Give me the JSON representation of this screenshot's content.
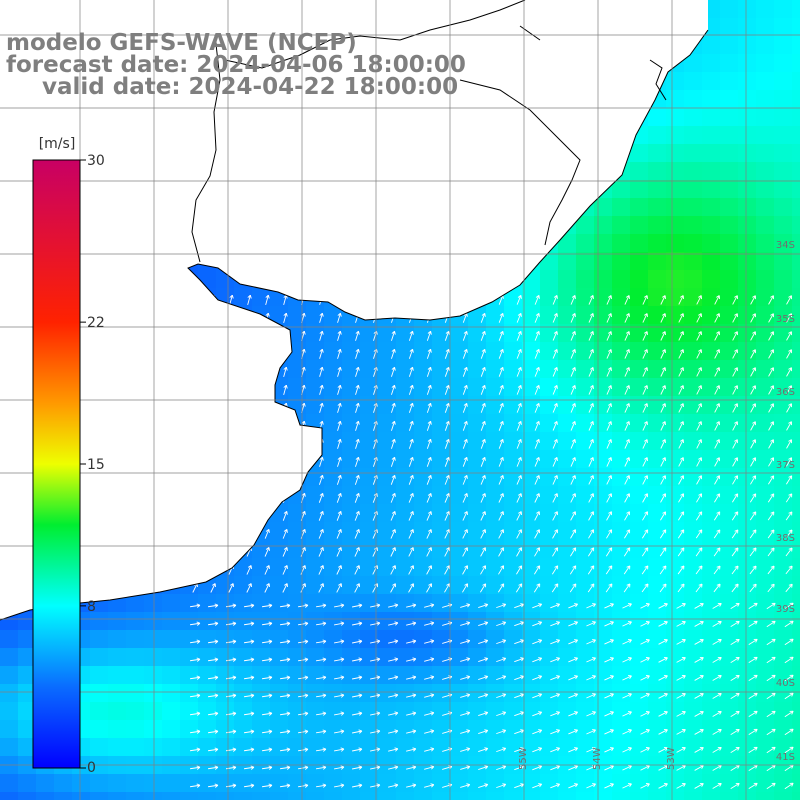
{
  "title": {
    "line1": "modelo GEFS-WAVE (NCEP)",
    "line2": "forecast date: 2024-04-06 18:00:00",
    "line3": "valid date: 2024-04-22 18:00:00"
  },
  "colorbar": {
    "unit": "[m/s]",
    "ticks": [
      {
        "value": 30,
        "label": "30"
      },
      {
        "value": 22,
        "label": "22"
      },
      {
        "value": 15,
        "label": "15"
      },
      {
        "value": 8,
        "label": "8"
      },
      {
        "value": 0,
        "label": "0"
      }
    ],
    "range": [
      0,
      30
    ],
    "stops": [
      {
        "value": 0,
        "color": "#0000ff"
      },
      {
        "value": 4,
        "color": "#0a6cff"
      },
      {
        "value": 8,
        "color": "#00ffff"
      },
      {
        "value": 12,
        "color": "#00ee30"
      },
      {
        "value": 15,
        "color": "#eeff00"
      },
      {
        "value": 18,
        "color": "#ff9900"
      },
      {
        "value": 22,
        "color": "#ff2200"
      },
      {
        "value": 30,
        "color": "#c80064"
      }
    ]
  },
  "map": {
    "latitude_labels": [
      "34S",
      "35S",
      "36S",
      "37S",
      "38S",
      "39S",
      "40S",
      "41S"
    ],
    "longitude_labels": [
      "55W",
      "54W",
      "53W"
    ],
    "colors": {
      "land": "#ffffff",
      "coastline": "#000000",
      "grid": "#808080",
      "arrow": "#ffffff",
      "label": "#707070"
    }
  }
}
